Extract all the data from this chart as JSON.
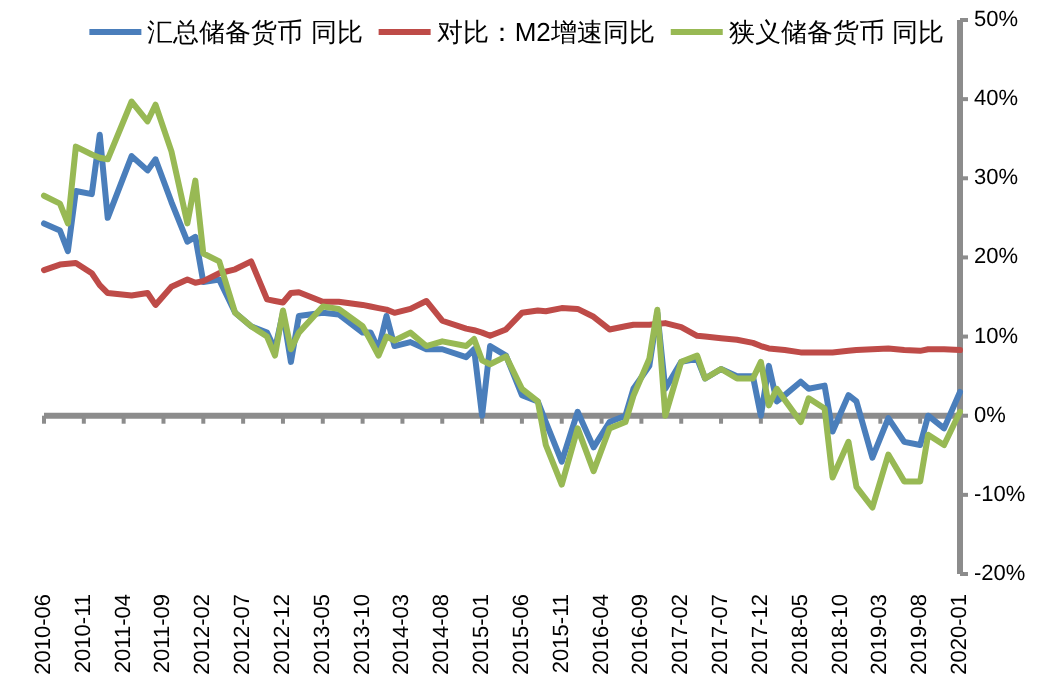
{
  "chart_data": {
    "type": "line",
    "x": [
      "2010-06",
      "2010-08",
      "2010-09",
      "2010-10",
      "2010-12",
      "2011-01",
      "2011-02",
      "2011-05",
      "2011-07",
      "2011-08",
      "2011-10",
      "2011-12",
      "2012-01",
      "2012-02",
      "2012-04",
      "2012-06",
      "2012-08",
      "2012-10",
      "2012-11",
      "2012-12",
      "2013-01",
      "2013-02",
      "2013-05",
      "2013-07",
      "2013-10",
      "2013-11",
      "2013-12",
      "2014-01",
      "2014-02",
      "2014-04",
      "2014-06",
      "2014-08",
      "2014-11",
      "2014-12",
      "2015-01",
      "2015-02",
      "2015-04",
      "2015-06",
      "2015-08",
      "2015-09",
      "2015-11",
      "2016-01",
      "2016-03",
      "2016-05",
      "2016-07",
      "2016-08",
      "2016-10",
      "2016-11",
      "2016-12",
      "2017-02",
      "2017-04",
      "2017-05",
      "2017-07",
      "2017-09",
      "2017-11",
      "2017-12",
      "2018-01",
      "2018-02",
      "2018-03",
      "2018-05",
      "2018-06",
      "2018-08",
      "2018-09",
      "2018-11",
      "2018-12",
      "2019-02",
      "2019-04",
      "2019-06",
      "2019-08",
      "2019-09",
      "2019-11",
      "2020-01"
    ],
    "series": [
      {
        "name": "汇总储备货币 同比",
        "color": "#4a7ebb",
        "values": [
          24.3,
          23.4,
          20.8,
          28.4,
          28,
          35.5,
          25,
          32.8,
          31,
          32.4,
          27,
          22,
          22.6,
          16.9,
          17.2,
          13,
          11.3,
          10.5,
          8.4,
          13,
          6.8,
          12.6,
          13,
          12.8,
          10.5,
          10.5,
          8.4,
          12.6,
          8.8,
          9.3,
          8.4,
          8.4,
          7.4,
          8.4,
          0,
          8.8,
          7.6,
          2.6,
          1.8,
          -0.8,
          -5.8,
          0.5,
          -4,
          -0.8,
          0,
          3.4,
          6.3,
          13,
          3.4,
          6.8,
          7.2,
          4.7,
          5.9,
          5,
          5,
          0,
          6.3,
          1.8,
          2.6,
          4.3,
          3.4,
          3.8,
          -2,
          2.6,
          1.8,
          -5.3,
          -0.3,
          -3.3,
          -3.7,
          0,
          -1.6,
          3
        ]
      },
      {
        "name": "对比：M2增速同比",
        "color": "#be4b48",
        "values": [
          18.4,
          19.1,
          19.2,
          19.3,
          18,
          16.5,
          15.5,
          15.2,
          15.5,
          14,
          16.3,
          17.2,
          16.8,
          17,
          18,
          18.5,
          19.5,
          14.7,
          14.5,
          14.3,
          15.5,
          15.6,
          14.4,
          14.4,
          14,
          13.8,
          13.6,
          13.4,
          13,
          13.5,
          14.5,
          12,
          11,
          10.8,
          10.5,
          10.1,
          10.9,
          13,
          13.3,
          13.2,
          13.6,
          13.5,
          12.5,
          10.9,
          11.3,
          11.5,
          11.5,
          11.6,
          11.7,
          11.2,
          10.1,
          10,
          9.8,
          9.6,
          9.2,
          8.8,
          8.5,
          8.4,
          8.3,
          8,
          8,
          8,
          8,
          8.2,
          8.3,
          8.4,
          8.5,
          8.3,
          8.2,
          8.4,
          8.4,
          8.3
        ]
      },
      {
        "name": "狭义储备货币 同比",
        "color": "#98b954",
        "values": [
          27.8,
          26.8,
          24.3,
          34,
          33,
          32.6,
          32.4,
          39.7,
          37.2,
          39.3,
          33.4,
          24.3,
          29.7,
          20.5,
          19.5,
          13,
          11.3,
          10,
          7.6,
          13.3,
          8.4,
          10.5,
          13.8,
          13.5,
          11.3,
          9.5,
          7.6,
          10,
          9.5,
          10.5,
          8.8,
          9.4,
          8.8,
          9.7,
          7,
          6.5,
          7.5,
          3.4,
          1.8,
          -3.7,
          -8.7,
          -1.6,
          -7,
          -1.6,
          -0.8,
          2.5,
          7.2,
          13.4,
          0,
          6.8,
          7.6,
          4.7,
          5.9,
          4.7,
          4.7,
          6.8,
          1.3,
          3.4,
          2,
          -0.8,
          2.2,
          0.9,
          -7.8,
          -3.3,
          -9,
          -11.6,
          -4.9,
          -8.3,
          -8.3,
          -2.4,
          -3.7,
          0.5
        ]
      }
    ],
    "xlim": [
      "2010-06",
      "2020-01"
    ],
    "xticks": [
      "2010-06",
      "2010-11",
      "2011-04",
      "2011-09",
      "2012-02",
      "2012-07",
      "2012-12",
      "2013-05",
      "2013-10",
      "2014-03",
      "2014-08",
      "2015-01",
      "2015-06",
      "2015-11",
      "2016-04",
      "2016-09",
      "2017-02",
      "2017-07",
      "2017-12",
      "2018-05",
      "2018-10",
      "2019-03",
      "2019-08",
      "2020-01"
    ],
    "ylim": [
      -20,
      50
    ],
    "yticks": [
      {
        "value": 50,
        "label": "50%"
      },
      {
        "value": 40,
        "label": "40%"
      },
      {
        "value": 30,
        "label": "30%"
      },
      {
        "value": 20,
        "label": "20%"
      },
      {
        "value": 10,
        "label": "10%"
      },
      {
        "value": 0,
        "label": "0%"
      },
      {
        "value": -10,
        "label": "-10%"
      },
      {
        "value": -20,
        "label": "-20%"
      }
    ],
    "legend": "top",
    "marker": "none",
    "line_style": "solid"
  }
}
